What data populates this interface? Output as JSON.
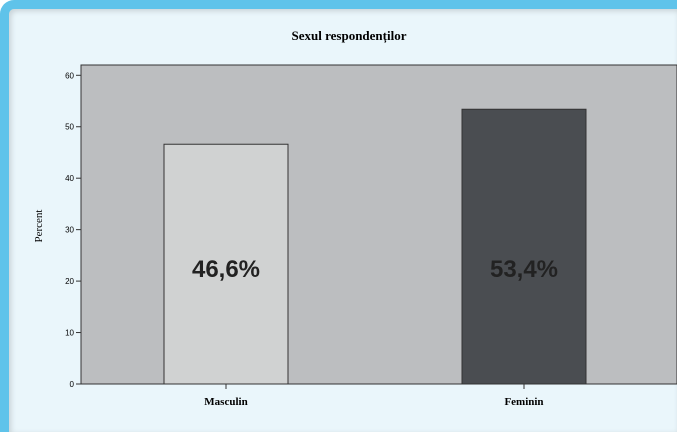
{
  "chart_data": {
    "type": "bar",
    "title": "Sexul respondenților",
    "xlabel": "",
    "ylabel": "Percent",
    "ylim": [
      0,
      62
    ],
    "yticks": [
      0,
      10,
      20,
      30,
      40,
      50,
      60
    ],
    "grid": false,
    "categories": [
      "Masculin",
      "Feminin"
    ],
    "values": [
      46.6,
      53.4
    ],
    "data_labels": [
      "46,6%",
      "53,4%"
    ],
    "colors": {
      "plot_background": "#bcbec0",
      "bars": [
        "#d0d2d2",
        "#4a4d51"
      ],
      "frame_border": "#5fc3ea"
    }
  }
}
